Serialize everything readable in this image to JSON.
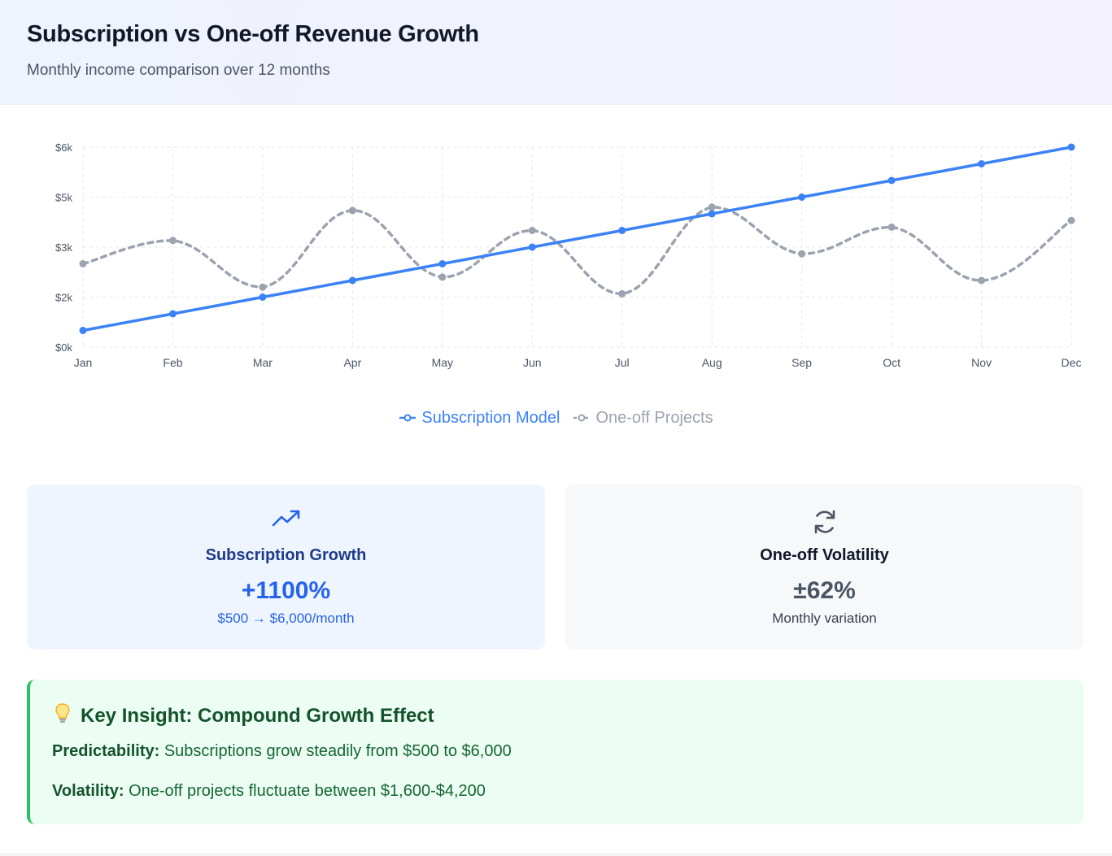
{
  "header": {
    "title": "Subscription vs One-off Revenue Growth",
    "subtitle": "Monthly income comparison over 12 months"
  },
  "chart_data": {
    "type": "line",
    "categories": [
      "Jan",
      "Feb",
      "Mar",
      "Apr",
      "May",
      "Jun",
      "Jul",
      "Aug",
      "Sep",
      "Oct",
      "Nov",
      "Dec"
    ],
    "series": [
      {
        "name": "Subscription Model",
        "color": "#3b82f6",
        "style": "solid",
        "values": [
          500,
          1000,
          1500,
          2000,
          2500,
          3000,
          3500,
          4000,
          4500,
          5000,
          5500,
          6000
        ]
      },
      {
        "name": "One-off Projects",
        "color": "#9ca3af",
        "style": "dashed",
        "values": [
          2500,
          3200,
          1800,
          4100,
          2100,
          3500,
          1600,
          4200,
          2800,
          3600,
          2000,
          3800
        ]
      }
    ],
    "yticks": [
      0,
      1500,
      3000,
      4500,
      6000
    ],
    "ytick_labels": [
      "$0k",
      "$2k",
      "$3k",
      "$5k",
      "$6k"
    ],
    "ylim": [
      0,
      6000
    ],
    "grid": true,
    "legend_position": "bottom-center"
  },
  "cards": [
    {
      "icon": "trending-up-icon",
      "title": "Subscription Growth",
      "value": "+1100%",
      "subtitle": "$500 → $6,000/month",
      "accent": "#2563eb"
    },
    {
      "icon": "refresh-icon",
      "title": "One-off Volatility",
      "value": "±62%",
      "subtitle": "Monthly variation",
      "accent": "#4b5563"
    }
  ],
  "insight": {
    "icon": "lightbulb-icon",
    "title": "Key Insight: Compound Growth Effect",
    "points": [
      {
        "label": "Predictability:",
        "text": " Subscriptions grow steadily from $500 to $6,000"
      },
      {
        "label": "Volatility:",
        "text": " One-off projects fluctuate between $1,600-$4,200"
      }
    ]
  }
}
